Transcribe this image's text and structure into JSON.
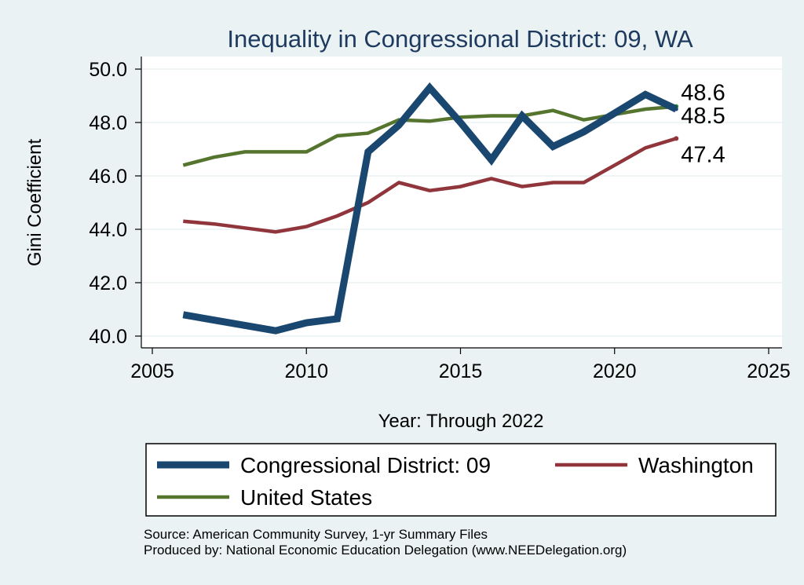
{
  "chart_data": {
    "type": "line",
    "title": "Inequality in Congressional District:  09, WA",
    "xlabel": "Year: Through 2022",
    "ylabel": "Gini Coefficient",
    "xlim": [
      2005,
      2025
    ],
    "ylim": [
      40.0,
      50.0
    ],
    "x_ticks": [
      2005,
      2010,
      2015,
      2020,
      2025
    ],
    "y_ticks": [
      40.0,
      42.0,
      44.0,
      46.0,
      48.0,
      50.0
    ],
    "y_tick_labels": [
      "40.0",
      "42.0",
      "44.0",
      "46.0",
      "48.0",
      "50.0"
    ],
    "grid": true,
    "legend_position": "bottom",
    "series": [
      {
        "name": "Congressional District:  09",
        "color": "#1a476f",
        "x": [
          2006,
          2009,
          2010,
          2011,
          2012,
          2013,
          2014,
          2015,
          2016,
          2017,
          2018,
          2019,
          2020,
          2021,
          2022
        ],
        "values": [
          40.8,
          40.2,
          40.5,
          40.65,
          46.9,
          47.9,
          49.3,
          48.0,
          46.6,
          48.25,
          47.1,
          47.65,
          48.35,
          49.05,
          48.5
        ],
        "end_label": "48.5"
      },
      {
        "name": "Washington",
        "color": "#90353b",
        "x": [
          2006,
          2007,
          2008,
          2009,
          2010,
          2011,
          2012,
          2013,
          2014,
          2015,
          2016,
          2017,
          2018,
          2019,
          2020,
          2021,
          2022
        ],
        "values": [
          44.3,
          44.2,
          44.05,
          43.9,
          44.1,
          44.5,
          45.0,
          45.75,
          45.45,
          45.6,
          45.9,
          45.6,
          45.75,
          45.75,
          46.4,
          47.05,
          47.4
        ],
        "end_label": "47.4"
      },
      {
        "name": "United States",
        "color": "#55752f",
        "x": [
          2006,
          2007,
          2008,
          2009,
          2010,
          2011,
          2012,
          2013,
          2014,
          2015,
          2016,
          2017,
          2018,
          2019,
          2020,
          2021,
          2022
        ],
        "values": [
          46.4,
          46.7,
          46.9,
          46.9,
          46.9,
          47.5,
          47.6,
          48.1,
          48.05,
          48.2,
          48.25,
          48.25,
          48.45,
          48.1,
          48.3,
          48.5,
          48.6
        ],
        "end_label": "48.6"
      }
    ]
  },
  "source_line": "Source: American Community Survey, 1-yr Summary Files",
  "produced_line": "Produced by: National Economic Education Delegation (www.NEEDelegation.org)"
}
